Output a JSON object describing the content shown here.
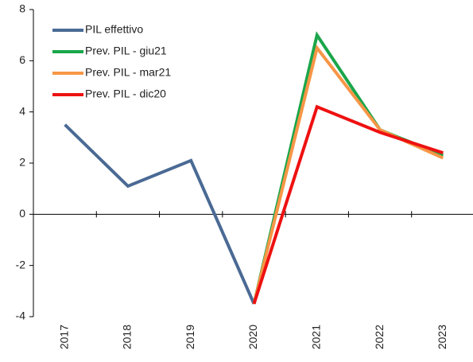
{
  "chart_data": {
    "type": "line",
    "categories": [
      "2017",
      "2018",
      "2019",
      "2020",
      "2021",
      "2022",
      "2023"
    ],
    "series": [
      {
        "name": "PIL effettivo",
        "color": "#4a6a94",
        "values": [
          3.5,
          1.1,
          2.1,
          -3.5,
          null,
          null,
          null
        ]
      },
      {
        "name": "Prev. PIL - giu21",
        "color": "#1aa64a",
        "values": [
          null,
          null,
          null,
          -3.5,
          7.0,
          3.3,
          2.3
        ]
      },
      {
        "name": "Prev. PIL - mar21",
        "color": "#f79646",
        "values": [
          null,
          null,
          null,
          -3.5,
          6.5,
          3.3,
          2.2
        ]
      },
      {
        "name": "Prev. PIL - dic20",
        "color": "#ee1111",
        "values": [
          null,
          null,
          null,
          -3.5,
          4.2,
          3.2,
          2.4
        ]
      }
    ],
    "ylim": [
      -4,
      8
    ],
    "yticks": [
      -4,
      -2,
      0,
      2,
      4,
      6,
      8
    ],
    "legend": "upper left"
  }
}
